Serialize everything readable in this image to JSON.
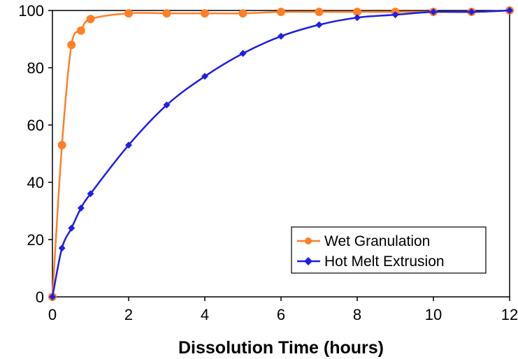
{
  "chart_data": {
    "type": "line",
    "title": "",
    "xlabel": "Dissolution Time (hours)",
    "ylabel": "",
    "xlim": [
      0,
      12
    ],
    "ylim": [
      0,
      100
    ],
    "xticks": [
      "0",
      "2",
      "4",
      "6",
      "8",
      "10",
      "12"
    ],
    "yticks": [
      "0",
      "20",
      "40",
      "60",
      "80",
      "100"
    ],
    "grid": false,
    "legend_position": "bottom-right",
    "series": [
      {
        "name": "Wet Granulation",
        "color": "#ff7f27",
        "marker": "circle",
        "x": [
          0,
          0.25,
          0.5,
          0.75,
          1,
          2,
          3,
          4,
          5,
          6,
          7,
          8,
          9,
          10,
          11,
          12
        ],
        "y": [
          0,
          53,
          88,
          93,
          97,
          99,
          99,
          99,
          99,
          99.5,
          99.5,
          99.5,
          99.5,
          99.5,
          99.5,
          100
        ]
      },
      {
        "name": "Hot Melt Extrusion",
        "color": "#1f1fe6",
        "marker": "diamond",
        "x": [
          0,
          0.25,
          0.5,
          0.75,
          1,
          2,
          3,
          4,
          5,
          6,
          7,
          8,
          9,
          10,
          11,
          12
        ],
        "y": [
          0,
          17,
          24,
          31,
          36,
          53,
          67,
          77,
          85,
          91,
          95,
          97.5,
          98.5,
          99.5,
          99.5,
          100
        ]
      }
    ]
  }
}
